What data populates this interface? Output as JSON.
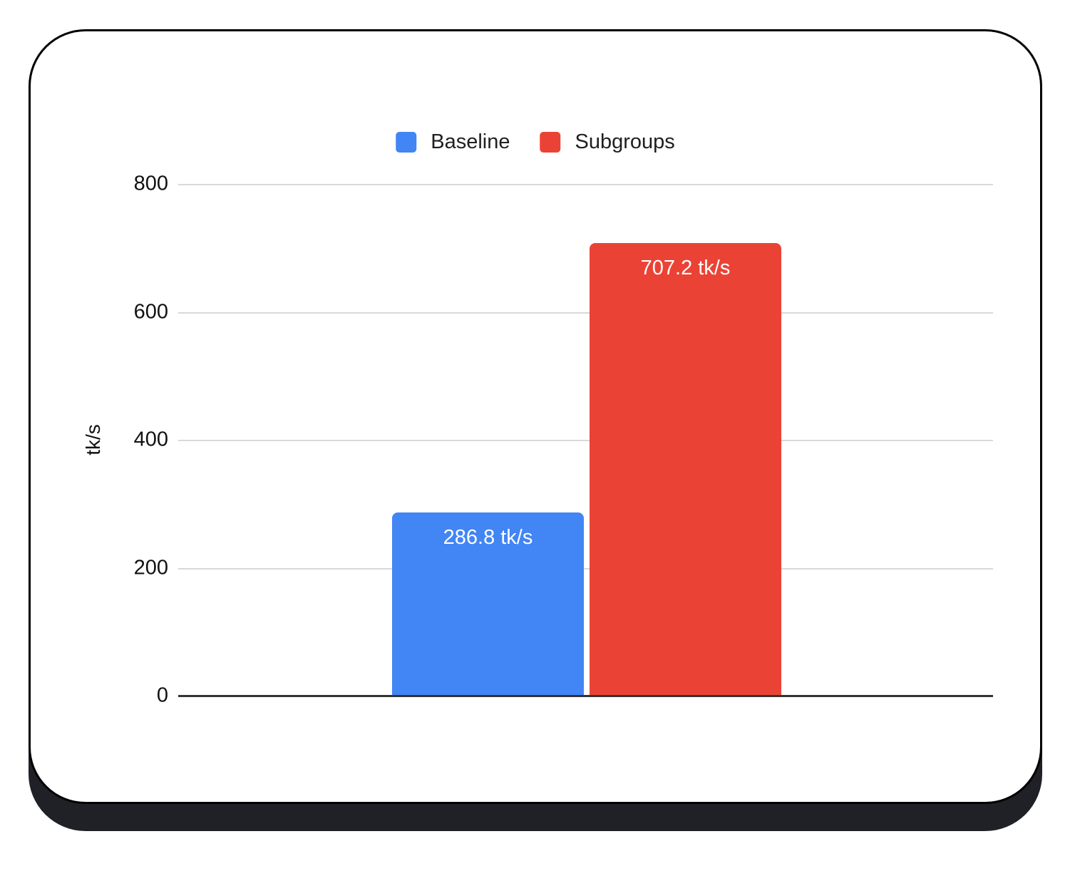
{
  "page": {
    "background": "#ffffff"
  },
  "card": {
    "background": "#ffffff",
    "border_color": "#000000",
    "shadow_color": "#1f2127"
  },
  "chart_data": {
    "type": "bar",
    "title": "",
    "xlabel": "",
    "ylabel": "tk/s",
    "categories": [
      ""
    ],
    "series": [
      {
        "name": "Baseline",
        "value": 286.8,
        "label": "286.8 tk/s",
        "color": "#4285F4"
      },
      {
        "name": "Subgroups",
        "value": 707.2,
        "label": "707.2 tk/s",
        "color": "#EA4335"
      }
    ],
    "ylim": [
      0,
      800
    ],
    "yticks": [
      800,
      600,
      400,
      200,
      0
    ],
    "ytick_labels": [
      "800",
      "600",
      "400",
      "200",
      "0"
    ],
    "grid": true,
    "gridline_color": "#d9d9d9",
    "axis_color": "#333333",
    "bar_label_color": "#ffffff",
    "legend_position": "top"
  }
}
